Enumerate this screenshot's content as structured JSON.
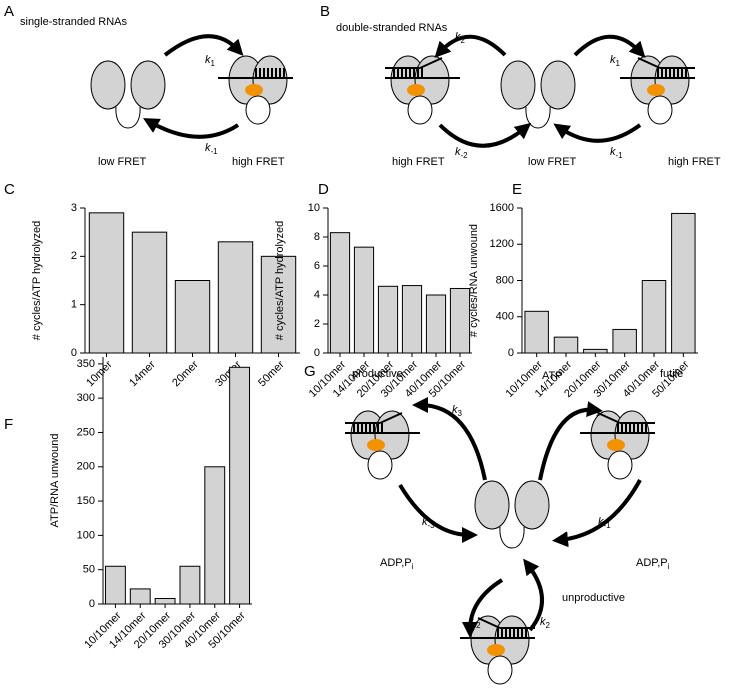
{
  "panels": [
    {
      "letter": "A",
      "title": "single-stranded RNAs",
      "rates": [
        {
          "k": "k",
          "sub": "1"
        },
        {
          "k": "k",
          "sub": "-1"
        }
      ],
      "states": [
        "low FRET",
        "high FRET"
      ]
    },
    {
      "letter": "B",
      "title": "double-stranded RNAs",
      "rates": [
        {
          "k": "k",
          "sub": "2"
        },
        {
          "k": "k",
          "sub": "1"
        },
        {
          "k": "k",
          "sub": "-2"
        },
        {
          "k": "k",
          "sub": "-1"
        }
      ],
      "states": [
        "high FRET",
        "low FRET",
        "high FRET"
      ]
    },
    {
      "letter": "G",
      "states": [
        "productive",
        "futile",
        "unproductive"
      ],
      "rates": [
        {
          "k": "k",
          "sub": "3"
        },
        {
          "k": "k",
          "sub": "1"
        },
        {
          "k": "k",
          "sub": "-3"
        },
        {
          "k": "k",
          "sub": "-1"
        },
        {
          "k": "k",
          "sub": "-2"
        },
        {
          "k": "k",
          "sub": "2"
        }
      ],
      "reagents": [
        {
          "text": "ATP"
        },
        {
          "text": "ADP,P",
          "sub": "i"
        },
        {
          "text": "ADP,P",
          "sub": "i"
        }
      ]
    }
  ],
  "chart_data": [
    {
      "type": "bar",
      "panel": "C",
      "y_label": "# cycles/ATP hydrolyzed",
      "categories": [
        "10mer",
        "14mer",
        "20mer",
        "30mer",
        "50mer"
      ],
      "values": [
        2.9,
        2.5,
        1.5,
        2.3,
        2.0
      ],
      "color": "#d3d3d3",
      "ylim": [
        0,
        3
      ],
      "yticks": [
        0,
        1,
        2,
        3
      ]
    },
    {
      "type": "bar",
      "panel": "D",
      "y_label": "# cycles/ATP hydrolyzed",
      "categories": [
        "10/10mer",
        "14/10mer",
        "20/10mer",
        "30/10mer",
        "40/10mer",
        "50/10mer"
      ],
      "values": [
        8.3,
        7.3,
        4.6,
        4.65,
        4.0,
        4.45
      ],
      "color": "#d3d3d3",
      "ylim": [
        0,
        10
      ],
      "yticks": [
        0,
        2,
        4,
        6,
        8,
        10
      ]
    },
    {
      "type": "bar",
      "panel": "E",
      "y_label": "# cycles/RNA unwound",
      "categories": [
        "10/10mer",
        "14/10mer",
        "20/10mer",
        "30/10mer",
        "40/10mer",
        "50/10mer"
      ],
      "values": [
        460,
        175,
        40,
        260,
        800,
        1540
      ],
      "color": "#d3d3d3",
      "ylim": [
        0,
        1600
      ],
      "yticks": [
        0,
        400,
        800,
        1200,
        1600
      ]
    },
    {
      "type": "bar",
      "panel": "F",
      "y_label": "ATP/RNA unwound",
      "categories": [
        "10/10mer",
        "14/10mer",
        "20/10mer",
        "30/10mer",
        "40/10mer",
        "50/10mer"
      ],
      "values": [
        55,
        22,
        8,
        55,
        200,
        345
      ],
      "color": "#d3d3d3",
      "ylim": [
        0,
        360
      ],
      "yticks": [
        0,
        50,
        100,
        150,
        200,
        250,
        300,
        350
      ]
    }
  ]
}
